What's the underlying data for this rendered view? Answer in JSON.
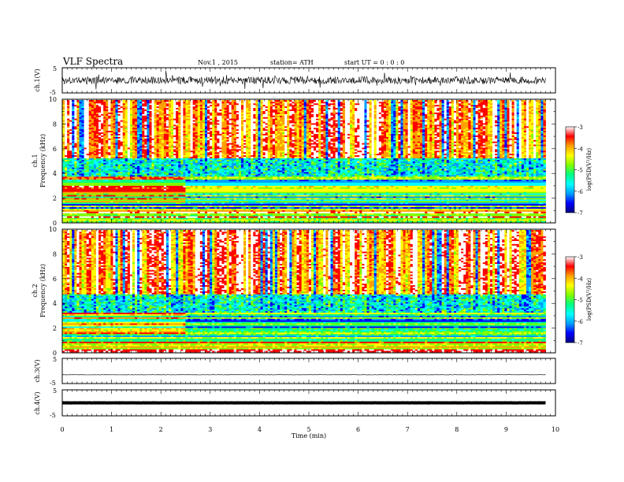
{
  "header": {
    "title": "VLF  Spectra",
    "date": "Nov.1  , 2015",
    "station": "station= ATH",
    "start": "start  UT  =   0  : 0  : 0"
  },
  "colorbar": {
    "label": "log(PSD(V²/Hz)",
    "ticks": [
      "-3",
      "-4",
      "-5",
      "-6",
      "-7"
    ],
    "colors": [
      "#000080",
      "#0000ff",
      "#00a0ff",
      "#00ffff",
      "#00ff80",
      "#80ff00",
      "#ffff00",
      "#ffa000",
      "#ff0000",
      "#ffffff"
    ]
  },
  "chart_data": [
    {
      "type": "line",
      "name": "ch.1 waveform",
      "ylabel": "ch.1(V)",
      "ylim": [
        -5,
        5
      ],
      "yticks": [
        "5",
        "-5"
      ],
      "xlim": [
        0,
        10
      ],
      "mean": 0.0,
      "noise_amplitude": 3,
      "end_min": 9.8
    },
    {
      "type": "heatmap",
      "name": "ch.1 spectrogram",
      "ylabel_top": "ch.1",
      "ylabel": "Frequency  (kHz)",
      "ylim": [
        0,
        10
      ],
      "yticks": [
        "0",
        "2",
        "4",
        "6",
        "8",
        "10"
      ],
      "xlim": [
        0,
        10
      ],
      "end_min": 9.8,
      "value_range": [
        -7,
        -3
      ],
      "seed": 7,
      "change_min": 2.5,
      "low_band_top_khz": 3.8
    },
    {
      "type": "heatmap",
      "name": "ch.2 spectrogram",
      "ylabel_top": "ch.2",
      "ylabel": "Frequency  (kHz)",
      "ylim": [
        0,
        10
      ],
      "yticks": [
        "0",
        "2",
        "4",
        "6",
        "8",
        "10"
      ],
      "xlim": [
        0,
        10
      ],
      "end_min": 9.8,
      "value_range": [
        -7,
        -3
      ],
      "seed": 13,
      "change_min": 2.5,
      "low_band_top_khz": 3.2
    },
    {
      "type": "line",
      "name": "ch.3 waveform",
      "ylabel": "ch.3(V)",
      "ylim": [
        -5,
        5
      ],
      "yticks": [
        "5",
        "-5"
      ],
      "xlim": [
        0,
        10
      ],
      "mean": -1.5,
      "noise_amplitude": 0.15,
      "end_min": 9.8
    },
    {
      "type": "line",
      "name": "ch.4 waveform",
      "ylabel": "ch.4(V)",
      "ylim": [
        -5,
        5
      ],
      "yticks": [
        "5",
        "-5"
      ],
      "xlim": [
        0,
        10
      ],
      "mean": 0.0,
      "noise_amplitude": 0.05,
      "end_min": 9.8
    }
  ],
  "xaxis": {
    "label": "Time  (min)",
    "ticks": [
      "0",
      "1",
      "2",
      "3",
      "4",
      "5",
      "6",
      "7",
      "8",
      "9",
      "10"
    ]
  }
}
